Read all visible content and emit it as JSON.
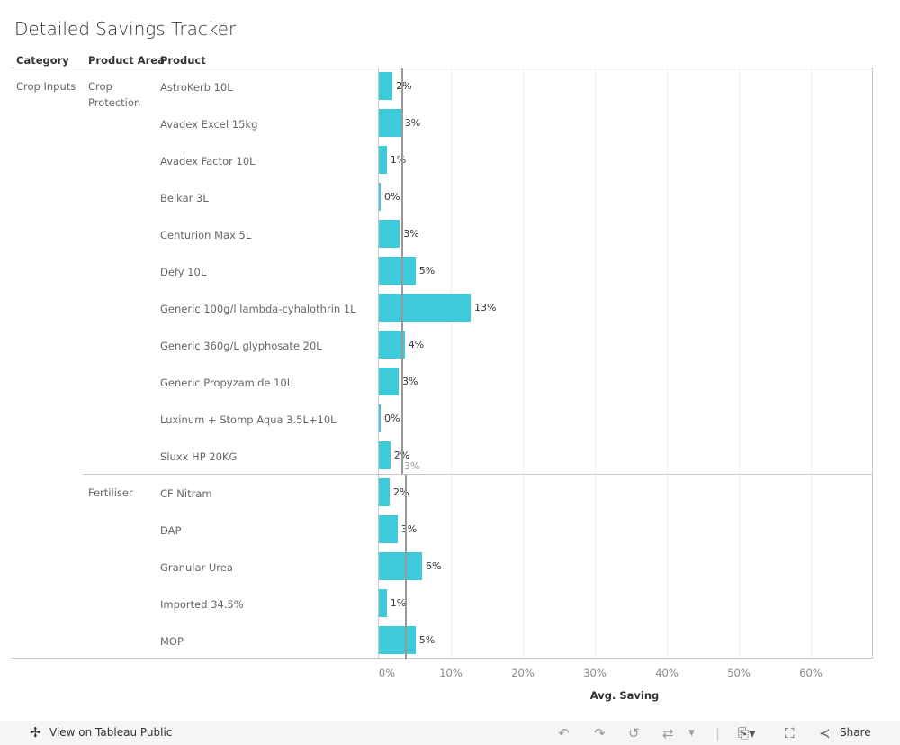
{
  "title": "Detailed Savings Tracker",
  "headers": {
    "category": "Category",
    "area": "Product Area",
    "product": "Product"
  },
  "chart_data": {
    "type": "bar",
    "title": "Detailed Savings Tracker",
    "xlabel": "Avg. Saving",
    "xlim": [
      0,
      68
    ],
    "xticks": [
      "0%",
      "10%",
      "20%",
      "30%",
      "40%",
      "50%",
      "60%"
    ],
    "category": "Crop Inputs",
    "groups": [
      {
        "area": "Crop Protection",
        "average": 3.25,
        "average_label": "3%",
        "items": [
          {
            "product": "AstroKerb 10L",
            "value": 1.9,
            "label": "2%"
          },
          {
            "product": "Avadex Excel 15kg",
            "value": 3.1,
            "label": "3%"
          },
          {
            "product": "Avadex Factor 10L",
            "value": 1.1,
            "label": "1%"
          },
          {
            "product": "Belkar 3L",
            "value": 0.25,
            "label": "0%"
          },
          {
            "product": "Centurion Max 5L",
            "value": 2.9,
            "label": "3%"
          },
          {
            "product": "Defy 10L",
            "value": 5.1,
            "label": "5%"
          },
          {
            "product": "Generic 100g/l lambda-cyhalothrin 1L",
            "value": 12.75,
            "label": "13%"
          },
          {
            "product": "Generic 360g/L glyphosate 20L",
            "value": 3.6,
            "label": "4%"
          },
          {
            "product": "Generic Propyzamide 10L",
            "value": 2.75,
            "label": "3%"
          },
          {
            "product": "Luxinum + Stomp Aqua 3.5L+10L",
            "value": 0.25,
            "label": "0%"
          },
          {
            "product": "Sluxx HP 20KG",
            "value": 1.6,
            "label": "2%"
          }
        ]
      },
      {
        "area": "Fertiliser",
        "average": 3.75,
        "items": [
          {
            "product": "CF Nitram",
            "value": 1.5,
            "label": "2%"
          },
          {
            "product": "DAP",
            "value": 2.6,
            "label": "3%"
          },
          {
            "product": "Granular Urea",
            "value": 6.0,
            "label": "6%"
          },
          {
            "product": "Imported 34.5%",
            "value": 1.1,
            "label": "1%"
          },
          {
            "product": "MOP",
            "value": 5.1,
            "label": "5%"
          }
        ]
      }
    ],
    "bar_color": "#3dcbdb"
  },
  "toolbar": {
    "view": "View on Tableau Public",
    "share": "Share"
  }
}
